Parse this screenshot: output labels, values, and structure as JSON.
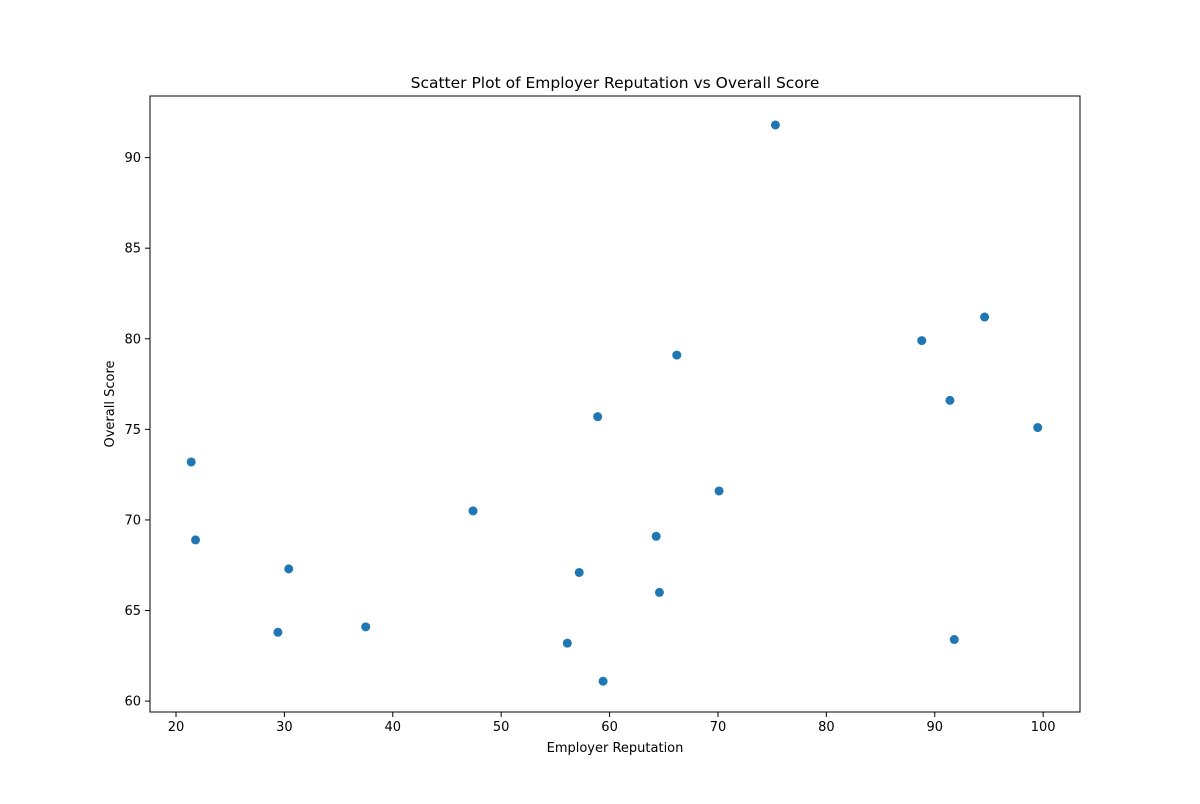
{
  "chart_data": {
    "type": "scatter",
    "title": "Scatter Plot of Employer Reputation vs Overall Score",
    "xlabel": "Employer Reputation",
    "ylabel": "Overall Score",
    "xlim": [
      17.6,
      103.4
    ],
    "ylim": [
      59.4,
      93.4
    ],
    "xticks": [
      20,
      30,
      40,
      50,
      60,
      70,
      80,
      90,
      100
    ],
    "yticks": [
      60,
      65,
      70,
      75,
      80,
      85,
      90
    ],
    "grid": false,
    "marker_color": "#1f77b4",
    "points": [
      {
        "x": 75.3,
        "y": 91.8
      },
      {
        "x": 94.6,
        "y": 81.2
      },
      {
        "x": 88.8,
        "y": 79.9
      },
      {
        "x": 66.2,
        "y": 79.1
      },
      {
        "x": 91.4,
        "y": 76.6
      },
      {
        "x": 58.9,
        "y": 75.7
      },
      {
        "x": 99.5,
        "y": 75.1
      },
      {
        "x": 21.4,
        "y": 73.2
      },
      {
        "x": 70.1,
        "y": 71.6
      },
      {
        "x": 47.4,
        "y": 70.5
      },
      {
        "x": 64.3,
        "y": 69.1
      },
      {
        "x": 21.8,
        "y": 68.9
      },
      {
        "x": 30.4,
        "y": 67.3
      },
      {
        "x": 57.2,
        "y": 67.1
      },
      {
        "x": 64.6,
        "y": 66.0
      },
      {
        "x": 37.5,
        "y": 64.1
      },
      {
        "x": 29.4,
        "y": 63.8
      },
      {
        "x": 91.8,
        "y": 63.4
      },
      {
        "x": 56.1,
        "y": 63.2
      },
      {
        "x": 59.4,
        "y": 61.1
      }
    ]
  }
}
